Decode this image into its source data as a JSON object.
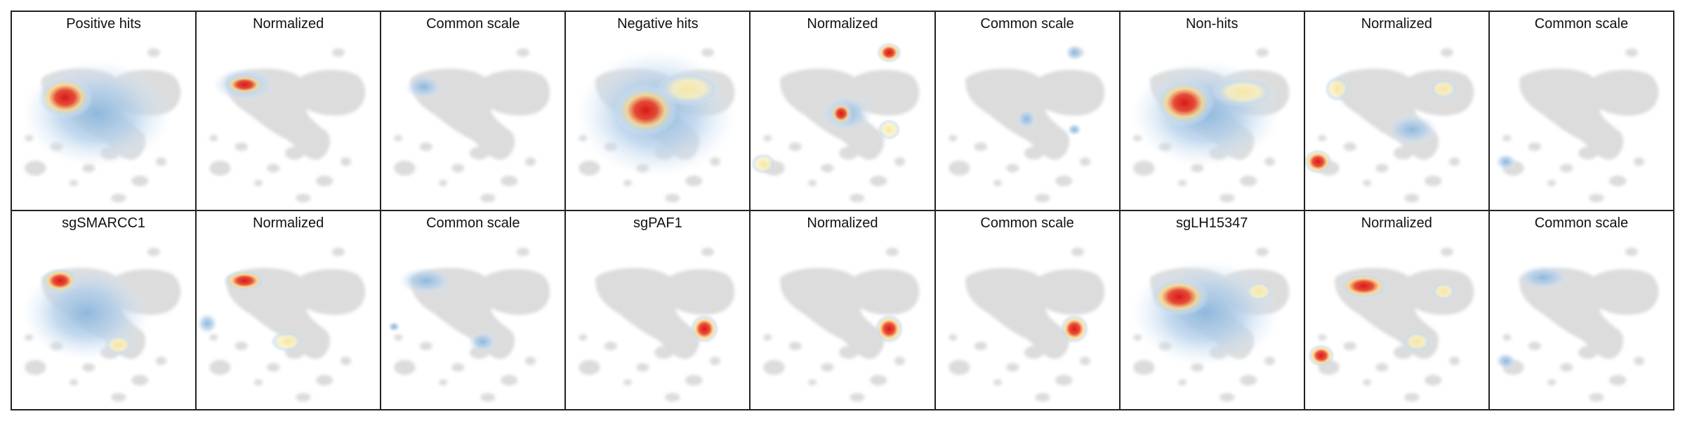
{
  "panels": [
    [
      "Positive hits",
      "Normalized",
      "Common scale",
      "Negative hits",
      "Normalized",
      "Common scale",
      "Non-hits",
      "Normalized",
      "Common scale"
    ],
    [
      "sgSMARCC1",
      "Normalized",
      "Common scale",
      "sgPAF1",
      "Normalized",
      "Common scale",
      "sgLH15347",
      "Normalized",
      "Common scale"
    ]
  ]
}
